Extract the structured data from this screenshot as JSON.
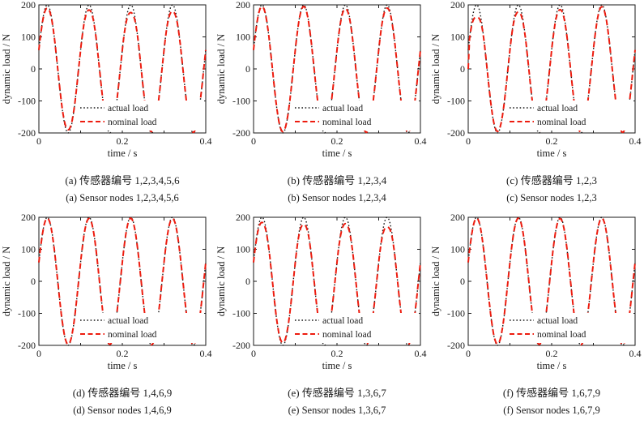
{
  "figure": {
    "background": "#ffffff",
    "axis_color": "#1a1a1a",
    "text_color": "#1a1a1a"
  },
  "chart_data": [
    {
      "id": "a",
      "type": "line",
      "title": "",
      "xlabel": "time / s",
      "ylabel": "dynamic load / N",
      "xlim": [
        0,
        0.4
      ],
      "ylim": [
        -200,
        200
      ],
      "xtick_labels": [
        "0",
        "0.2",
        "0.4"
      ],
      "xtick_values": [
        0,
        0.2,
        0.4
      ],
      "xtick_marks": [
        0,
        0.1,
        0.2,
        0.3,
        0.4
      ],
      "ytick_labels": [
        "200",
        "100",
        "0",
        "-100",
        "-200"
      ],
      "ytick_values": [
        200,
        100,
        0,
        -100,
        -200
      ],
      "legend_position": "lower-right",
      "grid": false,
      "series": [
        {
          "name": "actual load",
          "color": "#1a1a1a",
          "line_style": "dotted",
          "waveform": "sine",
          "amplitude_N": 200,
          "frequency_hz": 10,
          "phase_rad": 0.3,
          "extreme_scales": [
            1,
            1,
            1,
            1,
            1,
            1,
            1,
            1
          ],
          "starts_at_zero": false
        },
        {
          "name": "nominal load",
          "color": "#ed1c0f",
          "line_style": "dashed",
          "waveform": "sine",
          "amplitude_N": 200,
          "frequency_hz": 10,
          "phase_rad": 0.3,
          "extreme_scales": [
            0.95,
            0.95,
            0.92,
            0.95,
            0.88,
            0.98,
            0.9,
            0.99
          ],
          "starts_at_zero": false
        }
      ],
      "caption_zh": "(a) 传感器编号 1,2,3,4,5,6",
      "caption_en": "(a) Sensor nodes 1,2,3,4,5,6"
    },
    {
      "id": "b",
      "type": "line",
      "title": "",
      "xlabel": "time / s",
      "ylabel": "dynamic load / N",
      "xlim": [
        0,
        0.4
      ],
      "ylim": [
        -200,
        200
      ],
      "xtick_labels": [
        "0",
        "0.2",
        "0.4"
      ],
      "xtick_values": [
        0,
        0.2,
        0.4
      ],
      "xtick_marks": [
        0,
        0.1,
        0.2,
        0.3,
        0.4
      ],
      "ytick_labels": [
        "200",
        "100",
        "0",
        "-100",
        "-200"
      ],
      "ytick_values": [
        200,
        100,
        0,
        -100,
        -200
      ],
      "legend_position": "lower-right",
      "grid": false,
      "series": [
        {
          "name": "actual load",
          "color": "#1a1a1a",
          "line_style": "dotted",
          "waveform": "sine",
          "amplitude_N": 200,
          "frequency_hz": 10,
          "phase_rad": 0.3,
          "extreme_scales": [
            1,
            1,
            1,
            1,
            1,
            1,
            1,
            1
          ],
          "starts_at_zero": false
        },
        {
          "name": "nominal load",
          "color": "#ed1c0f",
          "line_style": "dashed",
          "waveform": "sine",
          "amplitude_N": 200,
          "frequency_hz": 10,
          "phase_rad": 0.3,
          "extreme_scales": [
            0.975,
            0.98,
            0.975,
            0.925,
            0.94,
            0.99,
            0.95,
            0.99
          ],
          "starts_at_zero": false
        }
      ],
      "caption_zh": "(b) 传感器编号 1,2,3,4",
      "caption_en": "(b) Sensor nodes 1,2,3,4"
    },
    {
      "id": "c",
      "type": "line",
      "title": "",
      "xlabel": "time / s",
      "ylabel": "dynamic load / N",
      "xlim": [
        0,
        0.4
      ],
      "ylim": [
        -200,
        200
      ],
      "xtick_labels": [
        "0",
        "0.2",
        "0.4"
      ],
      "xtick_values": [
        0,
        0.2,
        0.4
      ],
      "xtick_marks": [
        0,
        0.1,
        0.2,
        0.3,
        0.4
      ],
      "ytick_labels": [
        "200",
        "100",
        "0",
        "-100",
        "-200"
      ],
      "ytick_values": [
        200,
        100,
        0,
        -100,
        -200
      ],
      "legend_position": "lower-right",
      "grid": false,
      "series": [
        {
          "name": "actual load",
          "color": "#1a1a1a",
          "line_style": "dotted",
          "waveform": "sine",
          "amplitude_N": 200,
          "frequency_hz": 10,
          "phase_rad": 0.3,
          "extreme_scales": [
            1,
            1,
            1,
            1,
            1,
            1,
            1,
            1
          ],
          "starts_at_zero": false
        },
        {
          "name": "nominal load",
          "color": "#ed1c0f",
          "line_style": "dashed",
          "waveform": "sine",
          "amplitude_N": 200,
          "frequency_hz": 10,
          "phase_rad": 0.3,
          "extreme_scales": [
            0.81,
            0.975,
            0.89,
            0.975,
            0.925,
            0.99,
            0.97,
            0.99
          ],
          "starts_at_zero": true
        }
      ],
      "caption_zh": "(c) 传感器编号 1,2,3",
      "caption_en": "(c) Sensor nodes 1,2,3"
    },
    {
      "id": "d",
      "type": "line",
      "title": "",
      "xlabel": "time / s",
      "ylabel": "dynamic load / N",
      "xlim": [
        0,
        0.4
      ],
      "ylim": [
        -200,
        200
      ],
      "xtick_labels": [
        "0",
        "0.2",
        "0.4"
      ],
      "xtick_values": [
        0,
        0.2,
        0.4
      ],
      "xtick_marks": [
        0,
        0.1,
        0.2,
        0.3,
        0.4
      ],
      "ytick_labels": [
        "200",
        "100",
        "0",
        "-100",
        "-200"
      ],
      "ytick_values": [
        200,
        100,
        0,
        -100,
        -200
      ],
      "legend_position": "lower-right",
      "grid": false,
      "series": [
        {
          "name": "actual load",
          "color": "#1a1a1a",
          "line_style": "dotted",
          "waveform": "sine",
          "amplitude_N": 200,
          "frequency_hz": 10,
          "phase_rad": 0.3,
          "extreme_scales": [
            1,
            1,
            1,
            1,
            1,
            1,
            1,
            1
          ],
          "starts_at_zero": false
        },
        {
          "name": "nominal load",
          "color": "#ed1c0f",
          "line_style": "dashed",
          "waveform": "sine",
          "amplitude_N": 200,
          "frequency_hz": 10,
          "phase_rad": 0.3,
          "extreme_scales": [
            0.985,
            0.985,
            0.98,
            0.985,
            0.985,
            0.99,
            0.98,
            0.99
          ],
          "starts_at_zero": false
        }
      ],
      "caption_zh": "(d) 传感器编号 1,4,6,9",
      "caption_en": "(d) Sensor nodes 1,4,6,9"
    },
    {
      "id": "e",
      "type": "line",
      "title": "",
      "xlabel": "time / s",
      "ylabel": "dynamic load / N",
      "xlim": [
        0,
        0.4
      ],
      "ylim": [
        -200,
        200
      ],
      "xtick_labels": [
        "0",
        "0.2",
        "0.4"
      ],
      "xtick_values": [
        0,
        0.2,
        0.4
      ],
      "xtick_marks": [
        0,
        0.1,
        0.2,
        0.3,
        0.4
      ],
      "ytick_labels": [
        "200",
        "100",
        "0",
        "-100",
        "-200"
      ],
      "ytick_values": [
        200,
        100,
        0,
        -100,
        -200
      ],
      "legend_position": "lower-right",
      "grid": false,
      "series": [
        {
          "name": "actual load",
          "color": "#1a1a1a",
          "line_style": "dotted",
          "waveform": "sine",
          "amplitude_N": 200,
          "frequency_hz": 10,
          "phase_rad": 0.3,
          "extreme_scales": [
            1,
            1,
            1,
            1,
            1,
            1,
            1,
            1
          ],
          "starts_at_zero": false
        },
        {
          "name": "nominal load",
          "color": "#ed1c0f",
          "line_style": "dashed",
          "waveform": "sine",
          "amplitude_N": 200,
          "frequency_hz": 10,
          "phase_rad": 0.3,
          "extreme_scales": [
            0.92,
            0.96,
            0.89,
            0.925,
            0.9,
            0.99,
            0.85,
            0.99
          ],
          "starts_at_zero": false
        }
      ],
      "caption_zh": "(e) 传感器编号 1,3,6,7",
      "caption_en": "(e) Sensor nodes 1,3,6,7"
    },
    {
      "id": "f",
      "type": "line",
      "title": "",
      "xlabel": "time / s",
      "ylabel": "dynamic load / N",
      "xlim": [
        0,
        0.4
      ],
      "ylim": [
        -200,
        200
      ],
      "xtick_labels": [
        "0",
        "0.2",
        "0.4"
      ],
      "xtick_values": [
        0,
        0.2,
        0.4
      ],
      "xtick_marks": [
        0,
        0.1,
        0.2,
        0.3,
        0.4
      ],
      "ytick_labels": [
        "200",
        "100",
        "0",
        "-100",
        "-200"
      ],
      "ytick_values": [
        200,
        100,
        0,
        -100,
        -200
      ],
      "legend_position": "lower-right",
      "grid": false,
      "series": [
        {
          "name": "actual load",
          "color": "#1a1a1a",
          "line_style": "dotted",
          "waveform": "sine",
          "amplitude_N": 200,
          "frequency_hz": 10,
          "phase_rad": 0.3,
          "extreme_scales": [
            1,
            1,
            1,
            1,
            1,
            1,
            1,
            1
          ],
          "starts_at_zero": false
        },
        {
          "name": "nominal load",
          "color": "#ed1c0f",
          "line_style": "dashed",
          "waveform": "sine",
          "amplitude_N": 200,
          "frequency_hz": 10,
          "phase_rad": 0.3,
          "extreme_scales": [
            0.985,
            0.98,
            0.985,
            0.985,
            0.98,
            0.99,
            0.985,
            0.99
          ],
          "starts_at_zero": false
        }
      ],
      "caption_zh": "(f) 传感器编号 1,6,7,9",
      "caption_en": "(f) Sensor nodes 1,6,7,9"
    }
  ]
}
